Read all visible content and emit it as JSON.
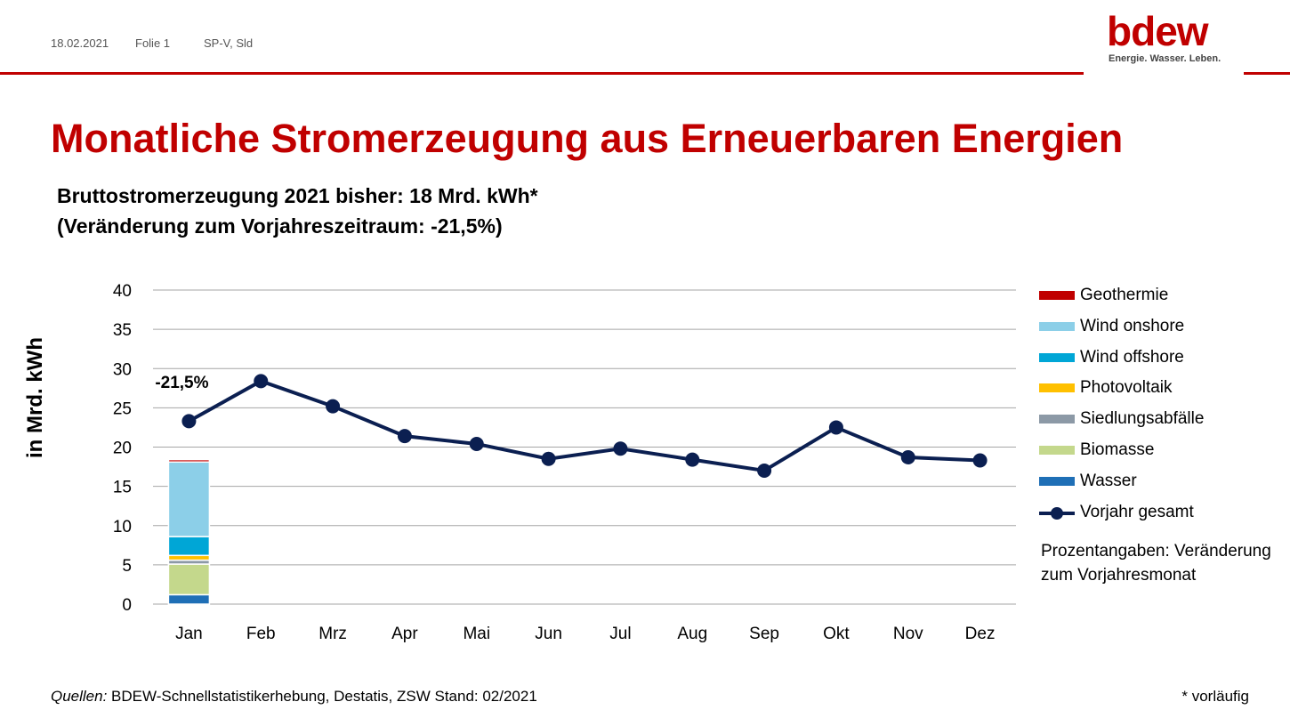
{
  "header": {
    "date": "18.02.2021",
    "slide": "Folie 1",
    "author": "SP-V, Sld",
    "logo_word": "bdew",
    "logo_tagline": "Energie. Wasser. Leben."
  },
  "title": "Monatliche Stromerzeugung aus Erneuerbaren Energien",
  "subtitle_line1": "Bruttostromerzeugung 2021 bisher: 18 Mrd. kWh*",
  "subtitle_line2": "(Veränderung zum Vorjahreszeitraum: -21,5%)",
  "legend_note": "Prozentangaben: Veränderung zum Vorjahresmonat",
  "source_label": "Quellen:",
  "source_text": " BDEW-Schnellstatistikerhebung, Destatis, ZSW Stand: 02/2021",
  "footnote": "* vorläufig",
  "colors": {
    "accent": "#c00000",
    "line": "#0b1f51",
    "grid": "#a6a6a6"
  },
  "chart_data": {
    "type": "bar",
    "ylabel": "in Mrd. kWh",
    "ylim": [
      0,
      40
    ],
    "yticks": [
      0,
      5,
      10,
      15,
      20,
      25,
      30,
      35,
      40
    ],
    "categories": [
      "Jan",
      "Feb",
      "Mrz",
      "Apr",
      "Mai",
      "Jun",
      "Jul",
      "Aug",
      "Sep",
      "Okt",
      "Nov",
      "Dez"
    ],
    "stacked": true,
    "grid": true,
    "legend_position": "right",
    "series": [
      {
        "name": "Wasser",
        "color": "#1f6fb6",
        "values": [
          1.2,
          null,
          null,
          null,
          null,
          null,
          null,
          null,
          null,
          null,
          null,
          null
        ]
      },
      {
        "name": "Biomasse",
        "color": "#c4d88c",
        "values": [
          3.9,
          null,
          null,
          null,
          null,
          null,
          null,
          null,
          null,
          null,
          null,
          null
        ]
      },
      {
        "name": "Siedlungsabfälle",
        "color": "#8c99a6",
        "values": [
          0.5,
          null,
          null,
          null,
          null,
          null,
          null,
          null,
          null,
          null,
          null,
          null
        ]
      },
      {
        "name": "Photovoltaik",
        "color": "#ffc000",
        "values": [
          0.6,
          null,
          null,
          null,
          null,
          null,
          null,
          null,
          null,
          null,
          null,
          null
        ]
      },
      {
        "name": "Wind offshore",
        "color": "#00a6d6",
        "values": [
          2.4,
          null,
          null,
          null,
          null,
          null,
          null,
          null,
          null,
          null,
          null,
          null
        ]
      },
      {
        "name": "Wind onshore",
        "color": "#8ccfe8",
        "values": [
          9.5,
          null,
          null,
          null,
          null,
          null,
          null,
          null,
          null,
          null,
          null,
          null
        ]
      },
      {
        "name": "Geothermie",
        "color": "#c00000",
        "values": [
          0.3,
          null,
          null,
          null,
          null,
          null,
          null,
          null,
          null,
          null,
          null,
          null
        ]
      }
    ],
    "line_series": {
      "name": "Vorjahr gesamt",
      "values": [
        23.3,
        28.4,
        25.2,
        21.4,
        20.4,
        18.5,
        19.8,
        18.4,
        17.0,
        22.5,
        18.7,
        18.3
      ]
    },
    "annotations": [
      {
        "category": "Jan",
        "text": "-21,5%"
      }
    ],
    "legend_order": [
      "Geothermie",
      "Wind onshore",
      "Wind offshore",
      "Photovoltaik",
      "Siedlungsabfälle",
      "Biomasse",
      "Wasser",
      "Vorjahr gesamt"
    ]
  }
}
